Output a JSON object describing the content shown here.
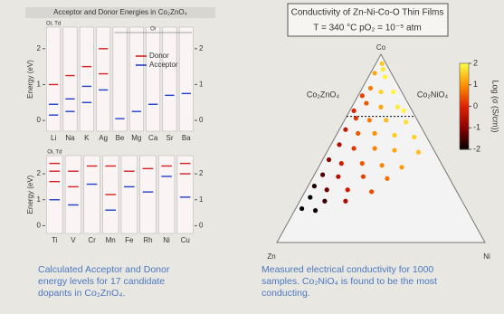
{
  "chart_data": [
    {
      "type": "levels",
      "title": "Acceptor and Donor Energies in Co₂ZnO₄",
      "y_label": "Energy (eV)",
      "categories": [
        "Li",
        "Na",
        "K",
        "Ag",
        "Be",
        "Mg",
        "Ca",
        "Sr",
        "Ba"
      ],
      "annotations": [
        "Oi, Td",
        "Oi"
      ],
      "ylim": [
        -0.3,
        2.6
      ],
      "yticks": [
        0,
        1,
        2
      ],
      "series": [
        {
          "name": "Donor",
          "color": "#d42020",
          "values": [
            [
              1.0
            ],
            [
              1.25
            ],
            [
              1.5
            ],
            [
              2.0,
              1.3
            ],
            [],
            [],
            [],
            [],
            []
          ]
        },
        {
          "name": "Acceptor",
          "color": "#2040c8",
          "values": [
            [
              0.45,
              0.15
            ],
            [
              0.6,
              0.25
            ],
            [
              0.95,
              0.5
            ],
            [
              0.85
            ],
            [
              0.05
            ],
            [
              0.25
            ],
            [
              0.45
            ],
            [
              0.7
            ],
            [
              0.75
            ]
          ]
        }
      ]
    },
    {
      "type": "levels",
      "y_label": "Energy (eV)",
      "categories": [
        "Ti",
        "V",
        "Cr",
        "Mn",
        "Fe",
        "Rh",
        "Ni",
        "Cu"
      ],
      "annotations": [
        "Oi, Td"
      ],
      "ylim": [
        -0.3,
        2.7
      ],
      "yticks": [
        0,
        1,
        2
      ],
      "series": [
        {
          "color": "#d42020",
          "values": [
            [
              2.4,
              2.1,
              1.7
            ],
            [
              2.1,
              1.5
            ],
            [
              2.3
            ],
            [
              2.3,
              1.2
            ],
            [
              2.1
            ],
            [
              2.2
            ],
            [
              2.3
            ],
            [
              2.4,
              2.0
            ]
          ]
        },
        {
          "color": "#2040c8",
          "values": [
            [
              1.0
            ],
            [
              0.8
            ],
            [
              1.6
            ],
            [
              0.6
            ],
            [
              1.5
            ],
            [
              1.3
            ],
            [
              1.9
            ],
            [
              1.1
            ]
          ]
        }
      ]
    },
    {
      "type": "ternary",
      "title": "Conductivity of Zn-Ni-Co-O Thin Films",
      "subtitle": "T = 340 °C    pO₂ = 10⁻⁵ atm",
      "vertex_labels": {
        "top": "Co",
        "left": "Zn",
        "right": "Ni"
      },
      "phase_labels": [
        "Co₂ZnO₄",
        "Co₂NiO₄"
      ],
      "reference_co": 0.67,
      "colorbar_label": "Log (σ (S/cm))",
      "clim": [
        -2,
        2
      ],
      "cticks": [
        -2,
        -1,
        0,
        1,
        2
      ],
      "colormap": [
        "#000000",
        "#8b0000",
        "#e02000",
        "#ff9000",
        "#ffff40"
      ],
      "co": [
        0.95,
        0.92,
        0.9,
        0.88,
        0.82,
        0.8,
        0.8,
        0.78,
        0.74,
        0.72,
        0.72,
        0.7,
        0.7,
        0.66,
        0.65,
        0.65,
        0.64,
        0.6,
        0.58,
        0.58,
        0.57,
        0.56,
        0.52,
        0.5,
        0.5,
        0.49,
        0.48,
        0.44,
        0.42,
        0.42,
        0.41,
        0.4,
        0.36,
        0.35,
        0.35,
        0.34,
        0.3,
        0.28,
        0.28,
        0.27,
        0.24,
        0.22,
        0.22,
        0.18,
        0.17
      ],
      "ni": [
        0.03,
        0.05,
        0.02,
        0.08,
        0.04,
        0.1,
        0.16,
        0.02,
        0.06,
        0.14,
        0.22,
        0.26,
        0.02,
        0.05,
        0.12,
        0.2,
        0.3,
        0.03,
        0.1,
        0.18,
        0.28,
        0.38,
        0.04,
        0.12,
        0.22,
        0.32,
        0.44,
        0.03,
        0.1,
        0.2,
        0.3,
        0.4,
        0.04,
        0.12,
        0.24,
        0.36,
        0.03,
        0.1,
        0.2,
        0.32,
        0.04,
        0.12,
        0.22,
        0.03,
        0.1
      ],
      "values": [
        1.5,
        1.8,
        1.2,
        1.9,
        0.8,
        1.6,
        1.9,
        0.3,
        0.5,
        1.2,
        1.8,
        1.9,
        0,
        0.2,
        0.8,
        1.4,
        1.7,
        -0.3,
        0.5,
        1.0,
        1.5,
        1.6,
        -0.6,
        0.2,
        0.9,
        1.2,
        1.4,
        -1.0,
        -0.2,
        0.5,
        0.9,
        1.1,
        -1.4,
        -0.5,
        0.3,
        0.7,
        -1.8,
        -1.2,
        -0.2,
        0.4,
        -2.0,
        -1.6,
        -0.6,
        -2.0,
        -1.9
      ]
    }
  ],
  "captions": {
    "left": [
      "Calculated Acceptor and Donor",
      "energy levels for 17 candidate",
      "dopants in Co₂ZnO₄."
    ],
    "right": [
      "Measured electrical conductivity for 1000",
      "samples.  Co₂NiO₄ is found to be the most",
      "conducting."
    ]
  }
}
